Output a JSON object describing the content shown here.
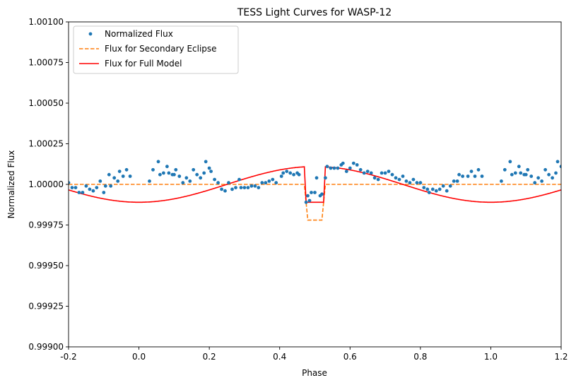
{
  "chart_data": {
    "type": "line",
    "title": "TESS Light Curves for WASP-12",
    "xlabel": "Phase",
    "ylabel": "Normalized Flux",
    "xlim": [
      -0.2,
      1.2
    ],
    "ylim": [
      0.999,
      1.001
    ],
    "x_ticks": [
      "-0.2",
      "0.0",
      "0.2",
      "0.4",
      "0.6",
      "0.8",
      "1.0",
      "1.2"
    ],
    "y_ticks": [
      "0.99900",
      "0.99925",
      "0.99950",
      "0.99975",
      "1.00000",
      "1.00025",
      "1.00050",
      "1.00075",
      "1.00100"
    ],
    "legend_position": "upper-left",
    "grid": false,
    "series": [
      {
        "name": "Normalized Flux",
        "style": "markers",
        "color": "#1f77b4",
        "points": [
          [
            -0.2,
            1.00001
          ],
          [
            -0.19,
            0.99998
          ],
          [
            -0.18,
            0.99998
          ],
          [
            -0.17,
            0.99995
          ],
          [
            -0.16,
            0.99995
          ],
          [
            -0.15,
            0.99999
          ],
          [
            -0.14,
            0.99997
          ],
          [
            -0.13,
            0.99996
          ],
          [
            -0.12,
            0.99998
          ],
          [
            -0.11,
            1.00002
          ],
          [
            -0.1,
            0.99995
          ],
          [
            -0.095,
            0.99999
          ],
          [
            -0.085,
            1.00006
          ],
          [
            -0.08,
            0.99999
          ],
          [
            -0.07,
            1.00004
          ],
          [
            -0.06,
            1.00002
          ],
          [
            -0.055,
            1.00008
          ],
          [
            -0.045,
            1.00005
          ],
          [
            -0.035,
            1.00009
          ],
          [
            -0.025,
            1.00005
          ],
          [
            0.03,
            1.00002
          ],
          [
            0.04,
            1.00009
          ],
          [
            0.055,
            1.00014
          ],
          [
            0.06,
            1.00006
          ],
          [
            0.07,
            1.00007
          ],
          [
            0.08,
            1.00011
          ],
          [
            0.085,
            1.00007
          ],
          [
            0.095,
            1.00006
          ],
          [
            0.1,
            1.00006
          ],
          [
            0.105,
            1.00009
          ],
          [
            0.115,
            1.00005
          ],
          [
            0.125,
            1.00001
          ],
          [
            0.135,
            1.00004
          ],
          [
            0.145,
            1.00002
          ],
          [
            0.155,
            1.00009
          ],
          [
            0.165,
            1.00006
          ],
          [
            0.175,
            1.00004
          ],
          [
            0.185,
            1.00007
          ],
          [
            0.19,
            1.00014
          ],
          [
            0.2,
            1.0001
          ],
          [
            0.205,
            1.00008
          ],
          [
            0.215,
            1.00003
          ],
          [
            0.225,
            1.00001
          ],
          [
            0.235,
            0.99997
          ],
          [
            0.245,
            0.99996
          ],
          [
            0.255,
            1.00001
          ],
          [
            0.265,
            0.99997
          ],
          [
            0.275,
            0.99998
          ],
          [
            0.285,
            1.00003
          ],
          [
            0.29,
            0.99998
          ],
          [
            0.3,
            0.99998
          ],
          [
            0.31,
            0.99998
          ],
          [
            0.32,
            0.99999
          ],
          [
            0.33,
            0.99999
          ],
          [
            0.34,
            0.99998
          ],
          [
            0.35,
            1.00001
          ],
          [
            0.36,
            1.00001
          ],
          [
            0.37,
            1.00002
          ],
          [
            0.38,
            1.00003
          ],
          [
            0.39,
            1.00001
          ],
          [
            0.405,
            1.00005
          ],
          [
            0.41,
            1.00007
          ],
          [
            0.42,
            1.00008
          ],
          [
            0.43,
            1.00007
          ],
          [
            0.44,
            1.00006
          ],
          [
            0.45,
            1.00007
          ],
          [
            0.455,
            1.00006
          ],
          [
            0.475,
            0.99989
          ],
          [
            0.48,
            0.99993
          ],
          [
            0.485,
            0.9999
          ],
          [
            0.49,
            0.99995
          ],
          [
            0.5,
            0.99995
          ],
          [
            0.505,
            1.00004
          ],
          [
            0.515,
            0.99993
          ],
          [
            0.52,
            0.99994
          ],
          [
            0.53,
            1.00004
          ],
          [
            0.535,
            1.00011
          ],
          [
            0.545,
            1.0001
          ],
          [
            0.555,
            1.0001
          ],
          [
            0.565,
            1.0001
          ],
          [
            0.575,
            1.00012
          ],
          [
            0.58,
            1.00013
          ],
          [
            0.59,
            1.00008
          ],
          [
            0.6,
            1.0001
          ],
          [
            0.61,
            1.00013
          ],
          [
            0.62,
            1.00012
          ],
          [
            0.63,
            1.00009
          ],
          [
            0.64,
            1.00007
          ],
          [
            0.65,
            1.00008
          ],
          [
            0.66,
            1.00007
          ],
          [
            0.67,
            1.00004
          ],
          [
            0.68,
            1.00003
          ],
          [
            0.69,
            1.00007
          ],
          [
            0.7,
            1.00007
          ],
          [
            0.71,
            1.00008
          ],
          [
            0.72,
            1.00006
          ],
          [
            0.73,
            1.00004
          ],
          [
            0.74,
            1.00003
          ],
          [
            0.75,
            1.00005
          ],
          [
            0.76,
            1.00002
          ],
          [
            0.77,
            1.00001
          ],
          [
            0.78,
            1.00003
          ],
          [
            0.79,
            1.00001
          ],
          [
            0.8,
            1.00001
          ],
          [
            0.81,
            0.99998
          ],
          [
            0.82,
            0.99997
          ],
          [
            0.825,
            0.99995
          ],
          [
            0.835,
            0.99997
          ],
          [
            0.845,
            0.99996
          ],
          [
            0.855,
            0.99997
          ],
          [
            0.865,
            0.99999
          ],
          [
            0.875,
            0.99996
          ],
          [
            0.885,
            0.99999
          ],
          [
            0.895,
            1.00002
          ],
          [
            0.905,
            1.00002
          ],
          [
            0.91,
            1.00006
          ],
          [
            0.92,
            1.00005
          ],
          [
            0.935,
            1.00005
          ],
          [
            0.945,
            1.00008
          ],
          [
            0.955,
            1.00005
          ],
          [
            0.965,
            1.00009
          ],
          [
            0.975,
            1.00005
          ],
          [
            1.03,
            1.00002
          ],
          [
            1.04,
            1.00009
          ],
          [
            1.055,
            1.00014
          ],
          [
            1.06,
            1.00006
          ],
          [
            1.07,
            1.00007
          ],
          [
            1.08,
            1.00011
          ],
          [
            1.085,
            1.00007
          ],
          [
            1.095,
            1.00006
          ],
          [
            1.1,
            1.00006
          ],
          [
            1.105,
            1.00009
          ],
          [
            1.115,
            1.00005
          ],
          [
            1.125,
            1.00001
          ],
          [
            1.135,
            1.00004
          ],
          [
            1.145,
            1.00002
          ],
          [
            1.155,
            1.00009
          ],
          [
            1.165,
            1.00006
          ],
          [
            1.175,
            1.00004
          ],
          [
            1.185,
            1.00007
          ],
          [
            1.19,
            1.00014
          ],
          [
            1.2,
            1.00011
          ]
        ]
      },
      {
        "name": "Flux for Secondary Eclipse",
        "style": "dashed",
        "color": "#ff7f0e",
        "points": [
          [
            -0.2,
            1.0
          ],
          [
            0.47,
            1.0
          ],
          [
            0.475,
            0.99989
          ],
          [
            0.48,
            0.99978
          ],
          [
            0.52,
            0.99978
          ],
          [
            0.525,
            0.99989
          ],
          [
            0.53,
            1.0
          ],
          [
            1.2,
            1.0
          ]
        ]
      },
      {
        "name": "Flux for Full Model",
        "style": "solid",
        "color": "#ff0000",
        "model": {
          "baseline": 1.0,
          "amplitude": 0.00011,
          "period": 1.0,
          "phase_of_minimum": 0.0,
          "eclipse_start": 0.47,
          "eclipse_end": 0.53,
          "eclipse_ingress": 0.005,
          "flux_in_eclipse": 0.99989
        }
      }
    ]
  }
}
